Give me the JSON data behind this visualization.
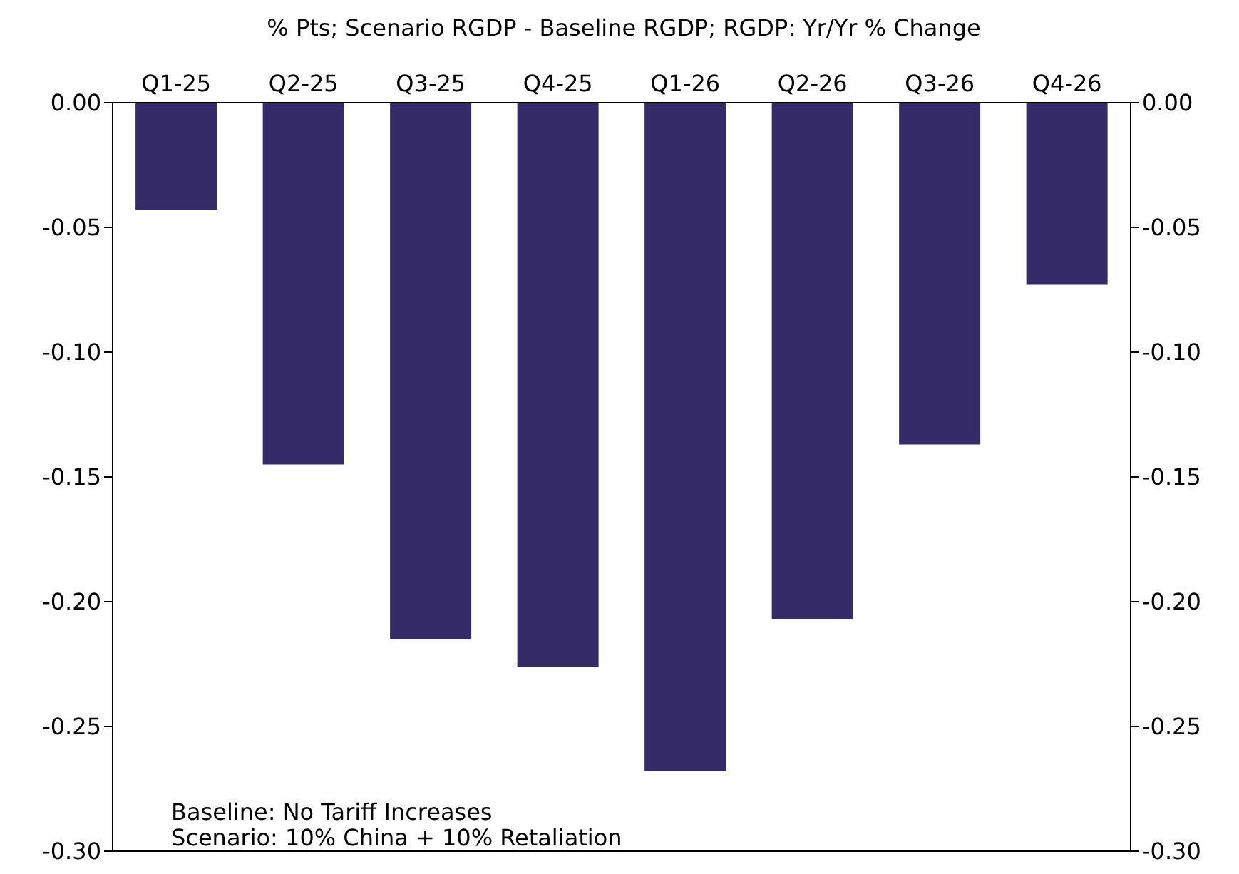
{
  "chart_data": {
    "type": "bar",
    "subtitle": "% Pts; Scenario RGDP - Baseline RGDP; RGDP: Yr/Yr % Change",
    "categories": [
      "Q1-25",
      "Q2-25",
      "Q3-25",
      "Q4-25",
      "Q1-26",
      "Q2-26",
      "Q3-26",
      "Q4-26"
    ],
    "values": [
      -0.043,
      -0.145,
      -0.215,
      -0.226,
      -0.268,
      -0.207,
      -0.137,
      -0.073
    ],
    "color": "#362b69",
    "ylim": [
      -0.3,
      0
    ],
    "yticks": [
      {
        "value": 0,
        "label": "0.00"
      },
      {
        "value": -0.05,
        "label": "-0.05"
      },
      {
        "value": -0.1,
        "label": "-0.10"
      },
      {
        "value": -0.15,
        "label": "-0.15"
      },
      {
        "value": -0.2,
        "label": "-0.20"
      },
      {
        "value": -0.25,
        "label": "-0.25"
      },
      {
        "value": -0.3,
        "label": "-0.30"
      }
    ],
    "y2lim": [
      -0.3,
      0
    ],
    "y2ticks": [
      {
        "value": 0,
        "label": "0.00"
      },
      {
        "value": -0.05,
        "label": "-0.05"
      },
      {
        "value": -0.1,
        "label": "-0.10"
      },
      {
        "value": -0.15,
        "label": "-0.15"
      },
      {
        "value": -0.2,
        "label": "-0.20"
      },
      {
        "value": -0.25,
        "label": "-0.25"
      },
      {
        "value": -0.3,
        "label": "-0.30"
      }
    ],
    "annotations": [
      "Baseline: No Tariff Increases",
      "Scenario: 10% China + 10% Retaliation"
    ],
    "grid": false
  }
}
